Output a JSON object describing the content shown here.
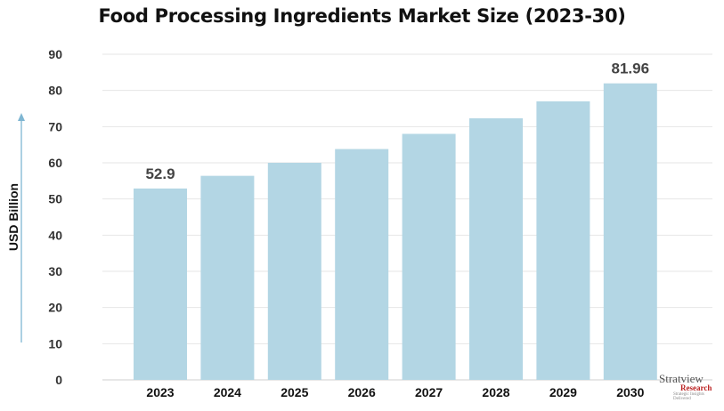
{
  "chart_data": {
    "type": "bar",
    "title": "Food Processing Ingredients Market Size (2023-30)",
    "xlabel": "",
    "ylabel": "USD Billion",
    "categories": [
      "2023",
      "2024",
      "2025",
      "2026",
      "2027",
      "2028",
      "2029",
      "2030"
    ],
    "values": [
      52.9,
      56.4,
      60.0,
      63.8,
      68.0,
      72.3,
      77.0,
      81.96
    ],
    "data_labels": {
      "0": "52.9",
      "7": "81.96"
    },
    "ylim": [
      0,
      90
    ],
    "yticks": [
      0,
      10,
      20,
      30,
      40,
      50,
      60,
      70,
      80,
      90
    ],
    "grid": true,
    "bar_color": "#b3d6e4",
    "axis_arrow_color": "#7fb6d2"
  },
  "logo": {
    "name": "Stratview",
    "sub": "Research",
    "tagline": "Strategic Insights Delivered"
  }
}
